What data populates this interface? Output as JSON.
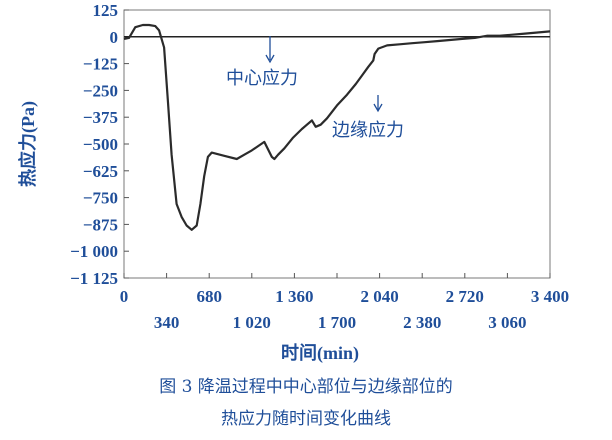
{
  "chart_data": {
    "type": "line",
    "xlabel": "时间(min)",
    "ylabel": "热应力(Pa)",
    "xlim": [
      0,
      3400
    ],
    "ylim": [
      -1125,
      125
    ],
    "x_ticks_upper": [
      0,
      680,
      1360,
      2040,
      2720,
      3400
    ],
    "x_ticks_lower": [
      340,
      1020,
      1700,
      2380,
      3060
    ],
    "x_tick_labels_upper": [
      "0",
      "680",
      "1 360",
      "2 040",
      "2 720",
      "3 400"
    ],
    "x_tick_labels_lower": [
      "340",
      "1 020",
      "1 700",
      "2 380",
      "3 060"
    ],
    "y_ticks": [
      125,
      0,
      -125,
      -250,
      -375,
      -500,
      -625,
      -750,
      -875,
      -1000,
      -1125
    ],
    "y_tick_labels": [
      "125",
      "0",
      "−125",
      "−250",
      "−375",
      "−500",
      "−625",
      "−750",
      "−875",
      "−1 000",
      "−1 125"
    ],
    "grid": false,
    "zero_line": true,
    "series": [
      {
        "name": "",
        "x": [
          0,
          40,
          90,
          150,
          200,
          250,
          280,
          320,
          350,
          380,
          420,
          460,
          500,
          540,
          580,
          610,
          640,
          670,
          700,
          800,
          900,
          960,
          1020,
          1070,
          1120,
          1180,
          1200,
          1230,
          1280,
          1350,
          1420,
          1500,
          1530,
          1570,
          1620,
          1700,
          1780,
          1850,
          1900,
          1950,
          1990,
          2000,
          2030,
          2100,
          2200,
          2300,
          2400,
          2500,
          2600,
          2700,
          2800,
          2900,
          3000,
          3100,
          3200,
          3300,
          3400
        ],
        "values": [
          -10,
          -5,
          45,
          55,
          55,
          50,
          30,
          -50,
          -300,
          -550,
          -780,
          -840,
          -880,
          -900,
          -880,
          -780,
          -650,
          -560,
          -540,
          -555,
          -570,
          -550,
          -530,
          -510,
          -490,
          -560,
          -570,
          -550,
          -520,
          -470,
          -430,
          -390,
          -420,
          -410,
          -380,
          -320,
          -270,
          -220,
          -180,
          -140,
          -110,
          -80,
          -55,
          -40,
          -35,
          -30,
          -25,
          -20,
          -15,
          -10,
          -5,
          5,
          5,
          10,
          15,
          20,
          25
        ]
      }
    ],
    "annotations": [
      {
        "text": "中心应力",
        "arrow": "down"
      },
      {
        "text": "边缘应力",
        "arrow": "down"
      }
    ]
  },
  "caption": {
    "line1": "图 3  降温过程中中心部位与边缘部位的",
    "line2": "热应力随时间变化曲线"
  }
}
